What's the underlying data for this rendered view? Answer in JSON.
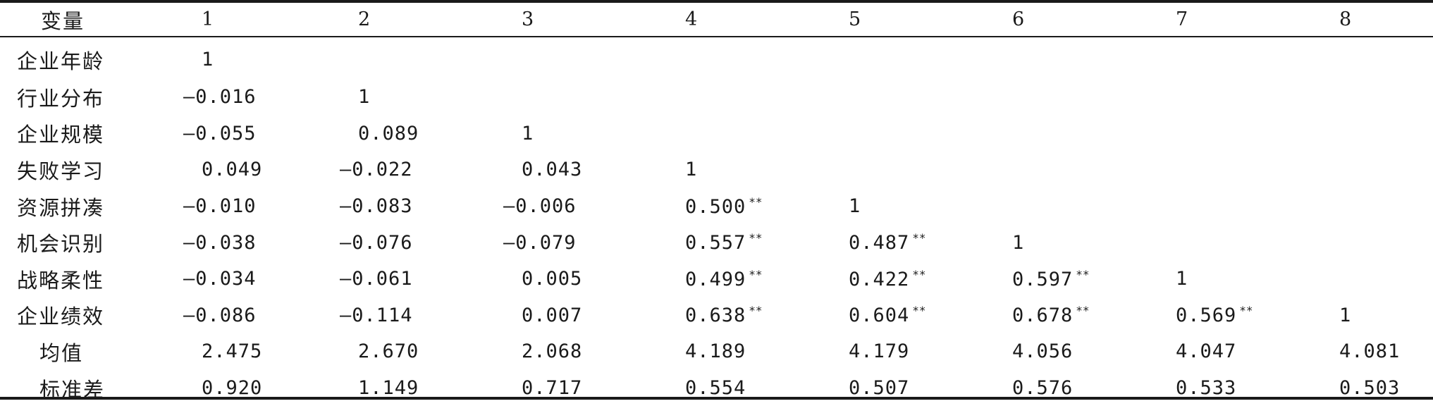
{
  "table": {
    "header": [
      "变量",
      "1",
      "2",
      "3",
      "4",
      "5",
      "6",
      "7",
      "8"
    ],
    "rows": [
      {
        "label": "企业年龄",
        "cells": [
          {
            "v": "1"
          }
        ]
      },
      {
        "label": "行业分布",
        "cells": [
          {
            "v": "—0.016"
          },
          {
            "v": "1"
          }
        ]
      },
      {
        "label": "企业规模",
        "cells": [
          {
            "v": "—0.055"
          },
          {
            "v": "0.089"
          },
          {
            "v": "1"
          }
        ]
      },
      {
        "label": "失败学习",
        "cells": [
          {
            "v": "0.049"
          },
          {
            "v": "—0.022"
          },
          {
            "v": "0.043"
          },
          {
            "v": "1"
          }
        ]
      },
      {
        "label": "资源拼凑",
        "cells": [
          {
            "v": "—0.010"
          },
          {
            "v": "—0.083"
          },
          {
            "v": "—0.006"
          },
          {
            "v": "0.500",
            "s": "**"
          },
          {
            "v": "1"
          }
        ]
      },
      {
        "label": "机会识别",
        "cells": [
          {
            "v": "—0.038"
          },
          {
            "v": "—0.076"
          },
          {
            "v": "—0.079"
          },
          {
            "v": "0.557",
            "s": "**"
          },
          {
            "v": "0.487",
            "s": "**"
          },
          {
            "v": "1"
          }
        ]
      },
      {
        "label": "战略柔性",
        "cells": [
          {
            "v": "—0.034"
          },
          {
            "v": "—0.061"
          },
          {
            "v": "0.005"
          },
          {
            "v": "0.499",
            "s": "**"
          },
          {
            "v": "0.422",
            "s": "**"
          },
          {
            "v": "0.597",
            "s": "**"
          },
          {
            "v": "1"
          }
        ]
      },
      {
        "label": "企业绩效",
        "cells": [
          {
            "v": "—0.086"
          },
          {
            "v": "—0.114"
          },
          {
            "v": "0.007"
          },
          {
            "v": "0.638",
            "s": "**"
          },
          {
            "v": "0.604",
            "s": "**"
          },
          {
            "v": "0.678",
            "s": "**"
          },
          {
            "v": "0.569",
            "s": "**"
          },
          {
            "v": "1"
          }
        ]
      },
      {
        "label": "均值",
        "stat": true,
        "cells": [
          {
            "v": "2.475"
          },
          {
            "v": "2.670"
          },
          {
            "v": "2.068"
          },
          {
            "v": "4.189"
          },
          {
            "v": "4.179"
          },
          {
            "v": "4.056"
          },
          {
            "v": "4.047"
          },
          {
            "v": "4.081"
          }
        ]
      },
      {
        "label": "标准差",
        "stat": true,
        "cells": [
          {
            "v": "0.920"
          },
          {
            "v": "1.149"
          },
          {
            "v": "0.717"
          },
          {
            "v": "0.554"
          },
          {
            "v": "0.507"
          },
          {
            "v": "0.576"
          },
          {
            "v": "0.533"
          },
          {
            "v": "0.503"
          }
        ]
      }
    ]
  }
}
